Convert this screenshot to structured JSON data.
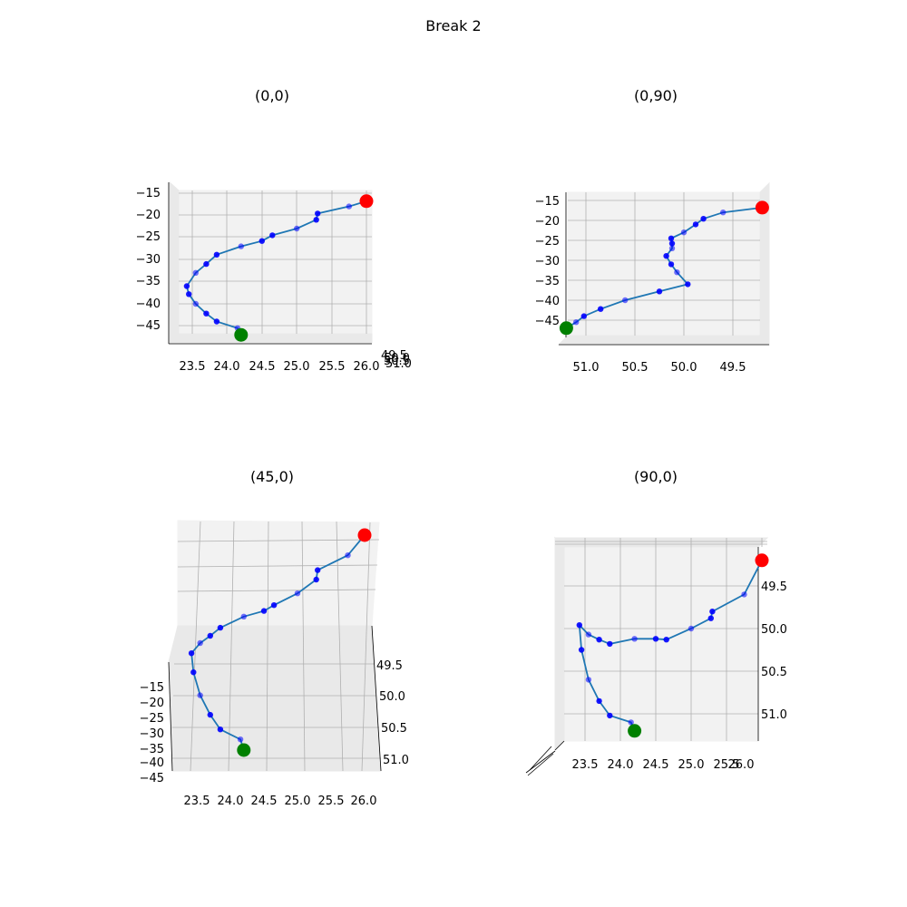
{
  "figure": {
    "suptitle": "Break 2"
  },
  "chart_data": [
    {
      "type": "line",
      "title": "(0,0)",
      "view": "elev 0, azim 0",
      "axes": {
        "x_ticks": [
          "23.5",
          "24.0",
          "24.5",
          "25.0",
          "25.5",
          "26.0"
        ],
        "z_ticks": [
          "−15",
          "−20",
          "−25",
          "−30",
          "−35",
          "−40",
          "−45"
        ],
        "y_ticks_overlapped": [
          "49.5",
          "50.0",
          "50.5",
          "51.0"
        ]
      }
    },
    {
      "type": "line",
      "title": "(0,90)",
      "view": "elev 0, azim 90",
      "axes": {
        "y_ticks": [
          "51.0",
          "50.5",
          "50.0",
          "49.5"
        ],
        "z_ticks": [
          "−15",
          "−20",
          "−25",
          "−30",
          "−35",
          "−40",
          "−45"
        ]
      }
    },
    {
      "type": "line",
      "title": "(45,0)",
      "view": "elev 45, azim 0",
      "axes": {
        "x_ticks": [
          "23.5",
          "24.0",
          "24.5",
          "25.0",
          "25.5",
          "26.0"
        ],
        "y_ticks": [
          "49.5",
          "50.0",
          "50.5",
          "51.0"
        ],
        "z_ticks": [
          "−15",
          "−20",
          "−25",
          "−30",
          "−35",
          "−40",
          "−45"
        ]
      }
    },
    {
      "type": "line",
      "title": "(90,0)",
      "view": "elev 90, azim 0",
      "axes": {
        "x_ticks": [
          "23.5",
          "24.0",
          "24.5",
          "25.0",
          "25.5",
          "26.0"
        ],
        "y_ticks": [
          "49.5",
          "50.0",
          "50.5",
          "51.0"
        ]
      }
    }
  ],
  "series": {
    "name": "",
    "line_color": "#1f77b4",
    "point_color": "#0000ff",
    "start_color": "#ff0000",
    "end_color": "#008000",
    "points": [
      {
        "x": 26.0,
        "y": 49.2,
        "z": -16.8
      },
      {
        "x": 25.75,
        "y": 49.6,
        "z": -18.0
      },
      {
        "x": 25.3,
        "y": 49.8,
        "z": -19.6
      },
      {
        "x": 25.28,
        "y": 49.88,
        "z": -21.0
      },
      {
        "x": 25.0,
        "y": 50.0,
        "z": -23.0
      },
      {
        "x": 24.65,
        "y": 50.13,
        "z": -24.5
      },
      {
        "x": 24.5,
        "y": 50.12,
        "z": -25.8
      },
      {
        "x": 24.2,
        "y": 50.12,
        "z": -27.0
      },
      {
        "x": 23.85,
        "y": 50.18,
        "z": -28.9
      },
      {
        "x": 23.7,
        "y": 50.13,
        "z": -31.0
      },
      {
        "x": 23.55,
        "y": 50.07,
        "z": -33.0
      },
      {
        "x": 23.42,
        "y": 49.96,
        "z": -36.0
      },
      {
        "x": 23.45,
        "y": 50.25,
        "z": -37.8
      },
      {
        "x": 23.55,
        "y": 50.6,
        "z": -40.0
      },
      {
        "x": 23.7,
        "y": 50.85,
        "z": -42.2
      },
      {
        "x": 23.85,
        "y": 51.02,
        "z": -44.0
      },
      {
        "x": 24.15,
        "y": 51.1,
        "z": -45.5
      },
      {
        "x": 24.2,
        "y": 51.2,
        "z": -47.0
      }
    ]
  }
}
